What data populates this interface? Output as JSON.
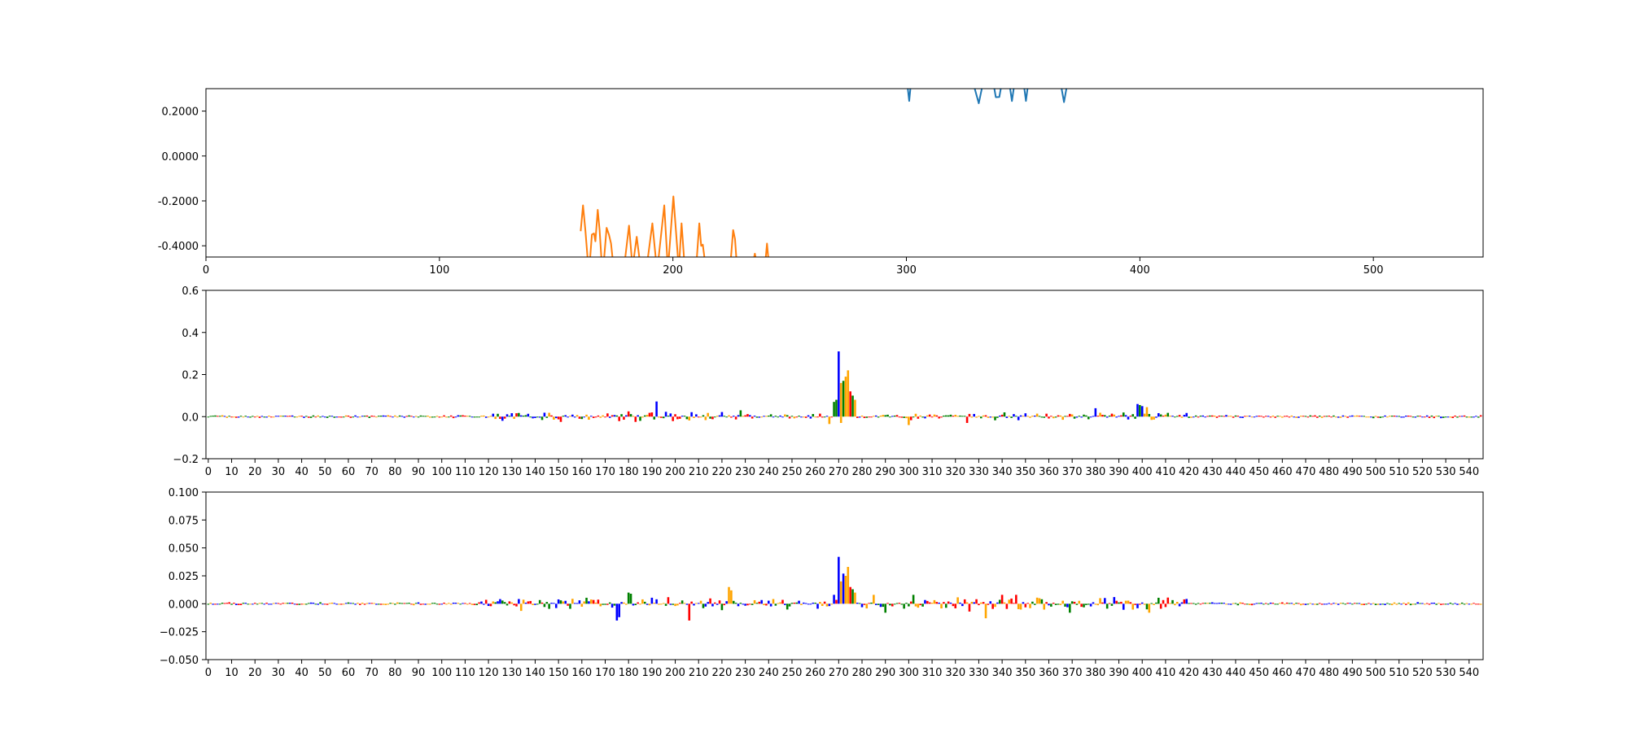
{
  "chart_data": [
    {
      "type": "line",
      "xlim": [
        0,
        547
      ],
      "ylim": [
        -0.45,
        0.3
      ],
      "xticks": [
        0,
        100,
        200,
        300,
        400,
        500
      ],
      "xtick_labels": [
        "0",
        "100",
        "200",
        "300",
        "400",
        "500"
      ],
      "yticks": [
        0.2,
        0.0,
        -0.2,
        -0.4
      ],
      "ytick_labels": [
        "0.2000",
        "0.0000",
        "-0.2000",
        "-0.4000"
      ],
      "grid": false,
      "series": [
        {
          "color": "#1f77b4",
          "points": [
            [
              300.5,
              0.31
            ],
            [
              301.2,
              0.245
            ],
            [
              301.8,
              0.31
            ],
            [
              329,
              0.31
            ],
            [
              331,
              0.235
            ],
            [
              332.5,
              0.31
            ],
            [
              337.5,
              0.31
            ],
            [
              338.3,
              0.262
            ],
            [
              339.8,
              0.263
            ],
            [
              340.6,
              0.31
            ],
            [
              344.3,
              0.31
            ],
            [
              345.2,
              0.245
            ],
            [
              346.1,
              0.31
            ],
            [
              350.4,
              0.31
            ],
            [
              351.2,
              0.245
            ],
            [
              352,
              0.31
            ],
            [
              366.3,
              0.31
            ],
            [
              367.5,
              0.24
            ],
            [
              368.7,
              0.31
            ]
          ]
        },
        {
          "color": "#ff7f0e",
          "points": [
            [
              160.5,
              -0.335
            ],
            [
              161.5,
              -0.22
            ],
            [
              162.5,
              -0.33
            ],
            [
              163.5,
              -0.46
            ],
            [
              164.5,
              -0.46
            ],
            [
              165.3,
              -0.35
            ],
            [
              166.2,
              -0.345
            ],
            [
              166.8,
              -0.38
            ],
            [
              167.8,
              -0.24
            ],
            [
              168.6,
              -0.33
            ],
            [
              169.4,
              -0.46
            ],
            [
              170.5,
              -0.46
            ],
            [
              171.6,
              -0.32
            ],
            [
              172.6,
              -0.35
            ],
            [
              173.5,
              -0.39
            ],
            [
              174.2,
              -0.46
            ],
            [
              179.5,
              -0.46
            ],
            [
              181.2,
              -0.31
            ],
            [
              182.4,
              -0.46
            ],
            [
              183.2,
              -0.46
            ],
            [
              184.5,
              -0.36
            ],
            [
              185.7,
              -0.46
            ],
            [
              189.2,
              -0.46
            ],
            [
              191.2,
              -0.3
            ],
            [
              192.7,
              -0.46
            ],
            [
              193.8,
              -0.46
            ],
            [
              196.3,
              -0.22
            ],
            [
              197.6,
              -0.46
            ],
            [
              198.2,
              -0.46
            ],
            [
              200.2,
              -0.18
            ],
            [
              202.2,
              -0.46
            ],
            [
              202.8,
              -0.46
            ],
            [
              203.7,
              -0.3
            ],
            [
              204.8,
              -0.46
            ],
            [
              210.2,
              -0.46
            ],
            [
              211.3,
              -0.3
            ],
            [
              212.1,
              -0.4
            ],
            [
              212.8,
              -0.395
            ],
            [
              213.6,
              -0.46
            ],
            [
              224.8,
              -0.46
            ],
            [
              225.8,
              -0.33
            ],
            [
              226.6,
              -0.37
            ],
            [
              227.2,
              -0.46
            ],
            [
              234.6,
              -0.46
            ],
            [
              235.1,
              -0.435
            ],
            [
              235.6,
              -0.46
            ],
            [
              239.7,
              -0.46
            ],
            [
              240.3,
              -0.39
            ],
            [
              240.9,
              -0.46
            ]
          ]
        }
      ]
    },
    {
      "type": "bar",
      "xlim": [
        -1,
        546
      ],
      "ylim": [
        -0.2,
        0.6
      ],
      "xticks": [
        0,
        10,
        20,
        30,
        40,
        50,
        60,
        70,
        80,
        90,
        100,
        110,
        120,
        130,
        140,
        150,
        160,
        170,
        180,
        190,
        200,
        210,
        220,
        230,
        240,
        250,
        260,
        270,
        280,
        290,
        300,
        310,
        320,
        330,
        340,
        350,
        360,
        370,
        380,
        390,
        400,
        410,
        420,
        430,
        440,
        450,
        460,
        470,
        480,
        490,
        500,
        510,
        520,
        530,
        540
      ],
      "xtick_labels": [
        "0",
        "10",
        "20",
        "30",
        "40",
        "50",
        "60",
        "70",
        "80",
        "90",
        "100",
        "110",
        "120",
        "130",
        "140",
        "150",
        "160",
        "170",
        "180",
        "190",
        "200",
        "210",
        "220",
        "230",
        "240",
        "250",
        "260",
        "270",
        "280",
        "290",
        "300",
        "310",
        "320",
        "330",
        "340",
        "350",
        "360",
        "370",
        "380",
        "390",
        "400",
        "410",
        "420",
        "430",
        "440",
        "450",
        "460",
        "470",
        "480",
        "490",
        "500",
        "510",
        "520",
        "530",
        "540"
      ],
      "yticks": [
        0.6,
        0.4,
        0.2,
        0.0,
        -0.2
      ],
      "ytick_labels": [
        "0.6",
        "0.4",
        "0.2",
        "0.0",
        "−0.2"
      ],
      "grid": false,
      "base_colors": [
        "#008000",
        "#0000ff",
        "#ffa500",
        "#ff0000"
      ],
      "active_regions": [
        [
          120,
          230,
          0.025
        ],
        [
          230,
          300,
          0.012
        ],
        [
          300,
          420,
          0.02
        ]
      ],
      "peaks": [
        [
          192,
          1,
          0.072
        ],
        [
          190,
          3,
          0.02
        ],
        [
          189,
          3,
          0.018
        ],
        [
          185,
          0,
          -0.02
        ],
        [
          183,
          3,
          -0.025
        ],
        [
          268,
          0,
          0.07
        ],
        [
          269,
          0,
          0.08
        ],
        [
          270,
          1,
          0.31
        ],
        [
          271,
          2,
          0.16
        ],
        [
          272,
          0,
          0.17
        ],
        [
          273,
          2,
          0.19
        ],
        [
          274,
          2,
          0.22
        ],
        [
          275,
          3,
          0.12
        ],
        [
          276,
          0,
          0.1
        ],
        [
          277,
          2,
          0.08
        ],
        [
          271,
          2,
          -0.03
        ],
        [
          266,
          2,
          -0.035
        ],
        [
          380,
          1,
          0.04
        ],
        [
          398,
          1,
          0.06
        ],
        [
          399,
          0,
          0.055
        ],
        [
          400,
          1,
          0.05
        ],
        [
          402,
          2,
          0.045
        ],
        [
          325,
          3,
          -0.03
        ],
        [
          300,
          2,
          -0.04
        ],
        [
          228,
          0,
          0.03
        ],
        [
          151,
          3,
          -0.025
        ]
      ]
    },
    {
      "type": "bar",
      "xlim": [
        -1,
        546
      ],
      "ylim": [
        -0.05,
        0.1
      ],
      "xticks": [
        0,
        10,
        20,
        30,
        40,
        50,
        60,
        70,
        80,
        90,
        100,
        110,
        120,
        130,
        140,
        150,
        160,
        170,
        180,
        190,
        200,
        210,
        220,
        230,
        240,
        250,
        260,
        270,
        280,
        290,
        300,
        310,
        320,
        330,
        340,
        350,
        360,
        370,
        380,
        390,
        400,
        410,
        420,
        430,
        440,
        450,
        460,
        470,
        480,
        490,
        500,
        510,
        520,
        530,
        540
      ],
      "xtick_labels": [
        "0",
        "10",
        "20",
        "30",
        "40",
        "50",
        "60",
        "70",
        "80",
        "90",
        "100",
        "110",
        "120",
        "130",
        "140",
        "150",
        "160",
        "170",
        "180",
        "190",
        "200",
        "210",
        "220",
        "230",
        "240",
        "250",
        "260",
        "270",
        "280",
        "290",
        "300",
        "310",
        "320",
        "330",
        "340",
        "350",
        "360",
        "370",
        "380",
        "390",
        "400",
        "410",
        "420",
        "430",
        "440",
        "450",
        "460",
        "470",
        "480",
        "490",
        "500",
        "510",
        "520",
        "530",
        "540"
      ],
      "yticks": [
        0.1,
        0.075,
        0.05,
        0.025,
        0.0,
        -0.025,
        -0.05
      ],
      "ytick_labels": [
        "0.100",
        "0.075",
        "0.050",
        "0.025",
        "0.000",
        "−0.025",
        "−0.050"
      ],
      "grid": false,
      "base_colors": [
        "#008000",
        "#0000ff",
        "#ffa500",
        "#ff0000"
      ],
      "active_regions": [
        [
          115,
          230,
          0.007
        ],
        [
          230,
          300,
          0.005
        ],
        [
          300,
          420,
          0.007
        ]
      ],
      "peaks": [
        [
          175,
          1,
          -0.015
        ],
        [
          176,
          1,
          -0.012
        ],
        [
          180,
          0,
          0.01
        ],
        [
          181,
          0,
          0.009
        ],
        [
          206,
          3,
          -0.015
        ],
        [
          223,
          2,
          0.015
        ],
        [
          224,
          2,
          0.012
        ],
        [
          268,
          1,
          0.008
        ],
        [
          270,
          1,
          0.042
        ],
        [
          271,
          2,
          0.02
        ],
        [
          272,
          1,
          0.027
        ],
        [
          273,
          2,
          0.025
        ],
        [
          274,
          2,
          0.033
        ],
        [
          275,
          3,
          0.015
        ],
        [
          276,
          0,
          0.013
        ],
        [
          277,
          2,
          0.01
        ],
        [
          285,
          2,
          0.008
        ],
        [
          290,
          0,
          -0.008
        ],
        [
          302,
          0,
          0.008
        ],
        [
          333,
          2,
          -0.013
        ],
        [
          340,
          3,
          0.008
        ],
        [
          346,
          3,
          0.008
        ],
        [
          369,
          0,
          -0.008
        ],
        [
          388,
          1,
          0.006
        ],
        [
          398,
          1,
          -0.004
        ],
        [
          403,
          2,
          -0.008
        ]
      ]
    }
  ]
}
